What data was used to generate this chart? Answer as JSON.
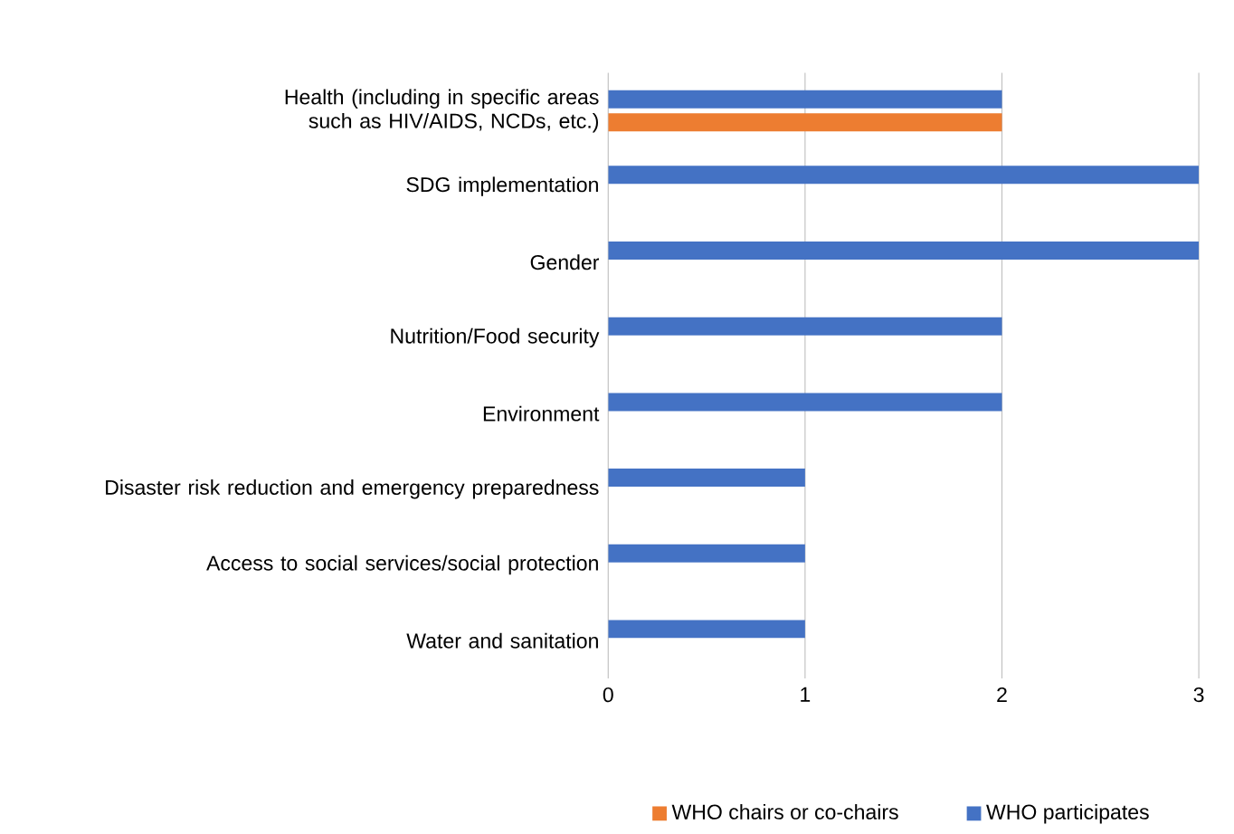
{
  "chart_data": {
    "type": "bar",
    "orientation": "horizontal",
    "categories": [
      "Health (including in specific areas such as HIV/AIDS, NCDs, etc.)",
      "SDG implementation",
      "Gender",
      "Nutrition/Food security",
      "Environment",
      "Disaster risk reduction and emergency preparedness",
      "Access to social services/social protection",
      "Water and sanitation"
    ],
    "series": [
      {
        "name": "WHO chairs or co-chairs",
        "color": "#ed7d31",
        "values": [
          2,
          null,
          null,
          null,
          null,
          null,
          null,
          null
        ]
      },
      {
        "name": "WHO participates",
        "color": "#4472c4",
        "values": [
          2,
          3,
          3,
          2,
          2,
          1,
          1,
          1
        ]
      }
    ],
    "xlim": [
      0,
      3
    ],
    "xticks": [
      0,
      1,
      2,
      3
    ],
    "grid": "x",
    "legend": "bottom"
  }
}
